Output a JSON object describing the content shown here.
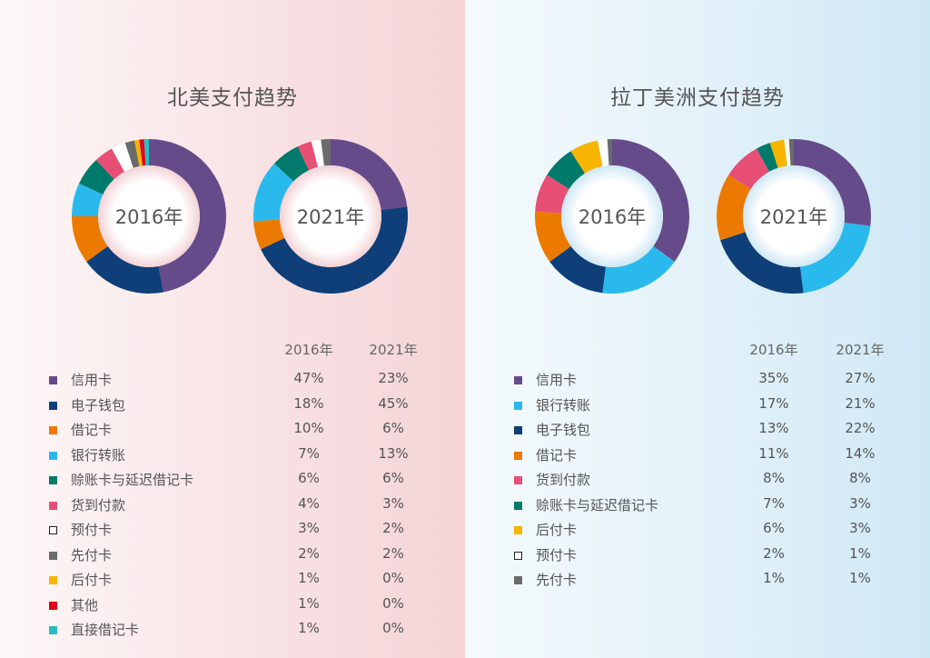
{
  "chart_data": [
    {
      "type": "donut",
      "title": "北美支付趋势",
      "years": [
        "2016年",
        "2021年"
      ],
      "categories": [
        "信用卡",
        "电子钱包",
        "借记卡",
        "银行转账",
        "赊账卡与延迟借记卡",
        "货到付款",
        "预付卡",
        "先付卡",
        "后付卡",
        "其他",
        "直接借记卡"
      ],
      "colors": [
        "#664b8a",
        "#0e3f78",
        "#ed7a00",
        "#2ab9ec",
        "#007a6a",
        "#e74f75",
        "#ffffff",
        "#6b6b6b",
        "#f7b500",
        "#e0001b",
        "#28bcc4"
      ],
      "series": [
        {
          "name": "2016年",
          "values": [
            47,
            18,
            10,
            7,
            6,
            4,
            3,
            2,
            1,
            1,
            1
          ]
        },
        {
          "name": "2021年",
          "values": [
            23,
            45,
            6,
            13,
            6,
            3,
            2,
            2,
            0,
            0,
            0
          ]
        }
      ],
      "labels": [
        [
          "47%",
          "18%",
          "10%",
          "7%",
          "6%",
          "4%",
          "3%",
          "2%",
          "1%",
          "1%",
          "1%"
        ],
        [
          "23%",
          "45%",
          "6%",
          "13%",
          "6%",
          "3%",
          "2%",
          "2%",
          "0%",
          "0%",
          "0%"
        ]
      ]
    },
    {
      "type": "donut",
      "title": "拉丁美洲支付趋势",
      "years": [
        "2016年",
        "2021年"
      ],
      "categories": [
        "信用卡",
        "银行转账",
        "电子钱包",
        "借记卡",
        "货到付款",
        "赊账卡与延迟借记卡",
        "后付卡",
        "预付卡",
        "先付卡"
      ],
      "colors": [
        "#664b8a",
        "#2ab9ec",
        "#0e3f78",
        "#ed7a00",
        "#e74f75",
        "#007a6a",
        "#f7b500",
        "#ffffff",
        "#6b6b6b"
      ],
      "series": [
        {
          "name": "2016年",
          "values": [
            35,
            17,
            13,
            11,
            8,
            7,
            6,
            2,
            1
          ]
        },
        {
          "name": "2021年",
          "values": [
            27,
            21,
            22,
            14,
            8,
            3,
            3,
            1,
            1
          ]
        }
      ],
      "labels": [
        [
          "35%",
          "17%",
          "13%",
          "11%",
          "8%",
          "7%",
          "6%",
          "2%",
          "1%"
        ],
        [
          "27%",
          "21%",
          "22%",
          "14%",
          "8%",
          "3%",
          "3%",
          "1%",
          "1%"
        ]
      ]
    }
  ]
}
